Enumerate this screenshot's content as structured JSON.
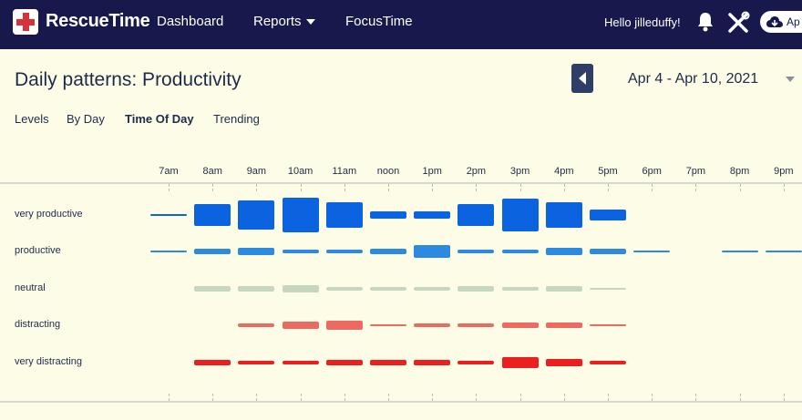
{
  "nav": {
    "brand": "RescueTime",
    "dashboard": "Dashboard",
    "reports": "Reports",
    "focustime": "FocusTime",
    "greeting": "Hello jilleduffy!",
    "app_button_label": "Ap",
    "icons": [
      "bell-icon",
      "tools-icon",
      "cloud-icon"
    ]
  },
  "page": {
    "title": "Daily patterns: Productivity",
    "date_range": "Apr 4 - Apr 10, 2021"
  },
  "tabs": [
    {
      "label": "Levels",
      "active": false
    },
    {
      "label": "By Day",
      "active": false
    },
    {
      "label": "Time Of Day",
      "active": true
    },
    {
      "label": "Trending",
      "active": false
    }
  ],
  "chart_data": {
    "type": "heatmap",
    "hours": [
      "7am",
      "8am",
      "9am",
      "10am",
      "11am",
      "noon",
      "1pm",
      "2pm",
      "3pm",
      "4pm",
      "5pm",
      "6pm",
      "7pm",
      "8pm",
      "9pm"
    ],
    "rows": [
      {
        "label": "very productive",
        "color": "#0c63e0",
        "values": [
          0.05,
          0.6,
          0.82,
          0.95,
          0.7,
          0.22,
          0.22,
          0.6,
          0.9,
          0.7,
          0.28,
          0,
          0,
          0,
          0
        ]
      },
      {
        "label": "productive",
        "color": "#2c8be0",
        "values": [
          0.05,
          0.14,
          0.18,
          0.12,
          0.08,
          0.16,
          0.35,
          0.1,
          0.12,
          0.18,
          0.14,
          0.05,
          0,
          0.05,
          0.05
        ]
      },
      {
        "label": "neutral",
        "color": "#c6d7c1",
        "values": [
          0,
          0.14,
          0.14,
          0.2,
          0.12,
          0.1,
          0.12,
          0.14,
          0.1,
          0.14,
          0.07,
          0,
          0,
          0,
          0
        ]
      },
      {
        "label": "distracting",
        "color": "#ec6a62",
        "values": [
          0,
          0,
          0.12,
          0.2,
          0.24,
          0.06,
          0.12,
          0.12,
          0.16,
          0.16,
          0.06,
          0,
          0,
          0,
          0
        ]
      },
      {
        "label": "very distracting",
        "color": "#ec1f1f",
        "values": [
          0,
          0.14,
          0.12,
          0.1,
          0.14,
          0.14,
          0.14,
          0.08,
          0.3,
          0.22,
          0.08,
          0,
          0,
          0,
          0
        ]
      }
    ]
  }
}
